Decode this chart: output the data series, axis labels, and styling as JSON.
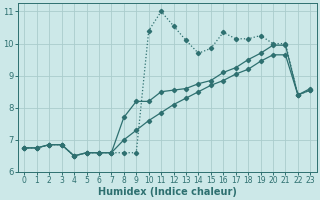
{
  "xlabel": "Humidex (Indice chaleur)",
  "xlim": [
    -0.5,
    23.5
  ],
  "ylim": [
    6,
    11.25
  ],
  "yticks": [
    6,
    7,
    8,
    9,
    10,
    11
  ],
  "xticks": [
    0,
    1,
    2,
    3,
    4,
    5,
    6,
    7,
    8,
    9,
    10,
    11,
    12,
    13,
    14,
    15,
    16,
    17,
    18,
    19,
    20,
    21,
    22,
    23
  ],
  "bg_color": "#cce8e8",
  "line_color": "#2e7070",
  "grid_color": "#aacccc",
  "line1_y": [
    6.75,
    6.75,
    6.85,
    6.85,
    6.5,
    6.6,
    6.6,
    6.6,
    6.6,
    6.6,
    10.4,
    11.0,
    10.55,
    10.1,
    9.7,
    9.85,
    10.35,
    10.15,
    10.15,
    10.25,
    10.0,
    10.0,
    8.4,
    8.55
  ],
  "line2_y": [
    6.75,
    6.75,
    6.85,
    6.85,
    6.5,
    6.6,
    6.6,
    6.6,
    7.7,
    8.2,
    8.2,
    8.5,
    8.55,
    8.6,
    8.75,
    8.85,
    9.1,
    9.25,
    9.5,
    9.7,
    9.95,
    9.95,
    8.4,
    8.55
  ],
  "line3_y": [
    6.75,
    6.75,
    6.85,
    6.85,
    6.5,
    6.6,
    6.6,
    6.6,
    7.0,
    7.3,
    7.6,
    7.85,
    8.1,
    8.3,
    8.5,
    8.7,
    8.85,
    9.05,
    9.2,
    9.45,
    9.65,
    9.65,
    8.4,
    8.6
  ]
}
